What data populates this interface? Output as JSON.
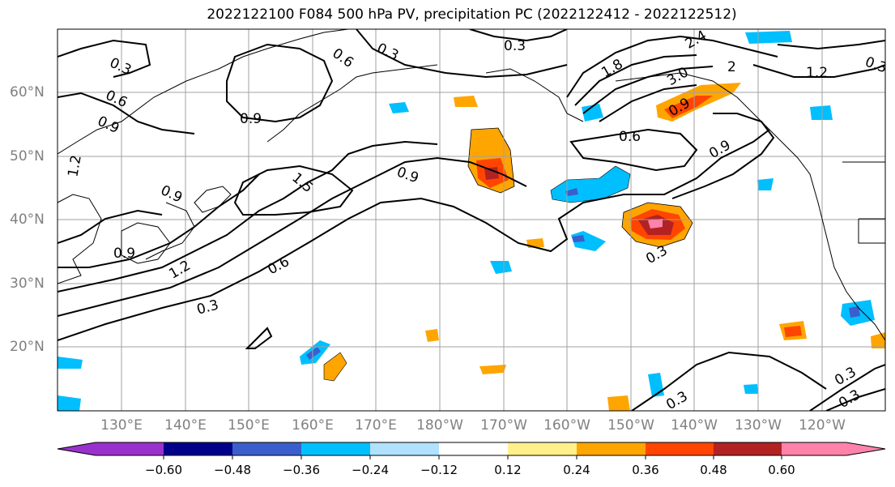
{
  "title": "2022122100 F084 500 hPa PV, precipitation PC (2022122412 - 2022122512)",
  "lat_labels": [
    "60°N",
    "50°N",
    "40°N",
    "30°N",
    "20°N"
  ],
  "lon_labels": [
    "130°E",
    "140°E",
    "150°E",
    "160°E",
    "170°E",
    "180°W",
    "170°W",
    "160°W",
    "150°W",
    "140°W",
    "130°W",
    "120°W"
  ],
  "contour_labels": [
    "0.3",
    "0.6",
    "0.9",
    "1.2",
    "1.5",
    "1.8",
    "2.4",
    "3.0",
    "2"
  ],
  "colorbar": {
    "ticks": [
      "−0.60",
      "−0.48",
      "−0.36",
      "−0.24",
      "−0.12",
      "0.12",
      "0.24",
      "0.36",
      "0.48",
      "0.60"
    ],
    "colors": [
      "#9932cc",
      "#00008b",
      "#3a5fcd",
      "#00bfff",
      "#b0e2ff",
      "#ffffff",
      "#fff08c",
      "#ffa500",
      "#ff4500",
      "#b22222",
      "#ff82ab"
    ]
  }
}
